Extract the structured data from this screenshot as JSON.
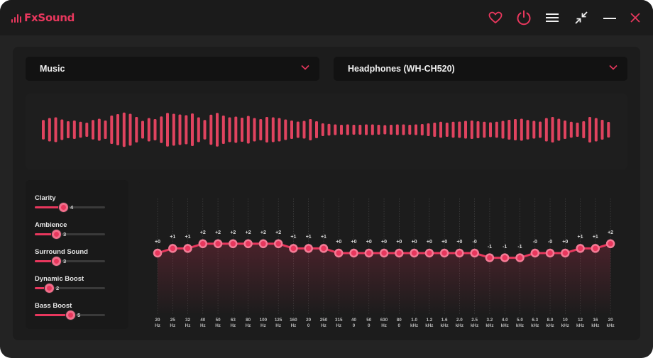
{
  "app": {
    "name": "FxSound"
  },
  "colors": {
    "accent": "#e8375d",
    "bg": "#232323",
    "panel": "#1c1c1c"
  },
  "titlebar": {
    "icons": [
      "heart-icon",
      "power-icon",
      "menu-icon",
      "minimize-to-mini-icon",
      "minimize-icon",
      "close-icon"
    ]
  },
  "preset": {
    "value": "Music"
  },
  "output": {
    "value": "Headphones (WH-CH520)"
  },
  "effects": [
    {
      "label": "Clarity",
      "value": "4",
      "level": 0.4
    },
    {
      "label": "Ambience",
      "value": "3",
      "level": 0.3
    },
    {
      "label": "Surround Sound",
      "value": "3",
      "level": 0.3
    },
    {
      "label": "Dynamic Boost",
      "value": "2",
      "level": 0.2
    },
    {
      "label": "Bass Boost",
      "value": "5",
      "level": 0.5
    }
  ],
  "equalizer": {
    "bands": [
      {
        "freq": [
          "20",
          "Hz"
        ],
        "gain": 0,
        "label": "+0"
      },
      {
        "freq": [
          "25",
          "Hz"
        ],
        "gain": 1,
        "label": "+1"
      },
      {
        "freq": [
          "32",
          "Hz"
        ],
        "gain": 1,
        "label": "+1"
      },
      {
        "freq": [
          "40",
          "Hz"
        ],
        "gain": 2,
        "label": "+2"
      },
      {
        "freq": [
          "50",
          "Hz"
        ],
        "gain": 2,
        "label": "+2"
      },
      {
        "freq": [
          "63",
          "Hz"
        ],
        "gain": 2,
        "label": "+2"
      },
      {
        "freq": [
          "80",
          "Hz"
        ],
        "gain": 2,
        "label": "+2"
      },
      {
        "freq": [
          "100",
          "Hz"
        ],
        "gain": 2,
        "label": "+2"
      },
      {
        "freq": [
          "125",
          "Hz"
        ],
        "gain": 2,
        "label": "+2"
      },
      {
        "freq": [
          "160",
          "Hz"
        ],
        "gain": 1,
        "label": "+1"
      },
      {
        "freq": [
          "20",
          "0"
        ],
        "gain": 1,
        "label": "+1"
      },
      {
        "freq": [
          "250",
          "Hz"
        ],
        "gain": 1,
        "label": "+1"
      },
      {
        "freq": [
          "315",
          "Hz"
        ],
        "gain": 0,
        "label": "+0"
      },
      {
        "freq": [
          "40",
          "0"
        ],
        "gain": 0,
        "label": "+0"
      },
      {
        "freq": [
          "50",
          "0"
        ],
        "gain": 0,
        "label": "+0"
      },
      {
        "freq": [
          "630",
          "Hz"
        ],
        "gain": 0,
        "label": "+0"
      },
      {
        "freq": [
          "80",
          "0"
        ],
        "gain": 0,
        "label": "+0"
      },
      {
        "freq": [
          "1.0",
          "kHz"
        ],
        "gain": 0,
        "label": "+0"
      },
      {
        "freq": [
          "1.2",
          "kHz"
        ],
        "gain": 0,
        "label": "+0"
      },
      {
        "freq": [
          "1.6",
          "kHz"
        ],
        "gain": 0,
        "label": "+0"
      },
      {
        "freq": [
          "2.0",
          "kHz"
        ],
        "gain": 0,
        "label": "+0"
      },
      {
        "freq": [
          "2.5",
          "kHz"
        ],
        "gain": 0,
        "label": "-0"
      },
      {
        "freq": [
          "3.2",
          "kHz"
        ],
        "gain": -1,
        "label": "-1"
      },
      {
        "freq": [
          "4.0",
          "kHz"
        ],
        "gain": -1,
        "label": "-1"
      },
      {
        "freq": [
          "5.0",
          "kHz"
        ],
        "gain": -1,
        "label": "-1"
      },
      {
        "freq": [
          "6.3",
          "kHz"
        ],
        "gain": 0,
        "label": "-0"
      },
      {
        "freq": [
          "8.0",
          "kHz"
        ],
        "gain": 0,
        "label": "-0"
      },
      {
        "freq": [
          "10",
          "kHz"
        ],
        "gain": 0,
        "label": "+0"
      },
      {
        "freq": [
          "12",
          "kHz"
        ],
        "gain": 1,
        "label": "+1"
      },
      {
        "freq": [
          "16",
          "kHz"
        ],
        "gain": 1,
        "label": "+1"
      },
      {
        "freq": [
          "20",
          "kHz"
        ],
        "gain": 2,
        "label": "+2"
      }
    ]
  },
  "visualizer": {
    "levels": [
      0.55,
      0.66,
      0.7,
      0.58,
      0.48,
      0.52,
      0.45,
      0.4,
      0.55,
      0.62,
      0.52,
      0.8,
      0.88,
      0.97,
      0.9,
      0.72,
      0.5,
      0.66,
      0.6,
      0.75,
      0.95,
      0.9,
      0.86,
      0.82,
      0.92,
      0.7,
      0.55,
      0.85,
      0.95,
      0.8,
      0.7,
      0.74,
      0.68,
      0.78,
      0.66,
      0.6,
      0.72,
      0.7,
      0.66,
      0.58,
      0.52,
      0.46,
      0.5,
      0.6,
      0.48,
      0.36,
      0.33,
      0.3,
      0.28,
      0.3,
      0.28,
      0.28,
      0.3,
      0.3,
      0.28,
      0.26,
      0.28,
      0.3,
      0.3,
      0.28,
      0.3,
      0.32,
      0.36,
      0.4,
      0.45,
      0.4,
      0.45,
      0.46,
      0.5,
      0.52,
      0.48,
      0.45,
      0.42,
      0.45,
      0.5,
      0.56,
      0.6,
      0.62,
      0.55,
      0.5,
      0.46,
      0.66,
      0.72,
      0.62,
      0.52,
      0.45,
      0.4,
      0.48,
      0.72,
      0.66,
      0.56,
      0.44
    ]
  }
}
